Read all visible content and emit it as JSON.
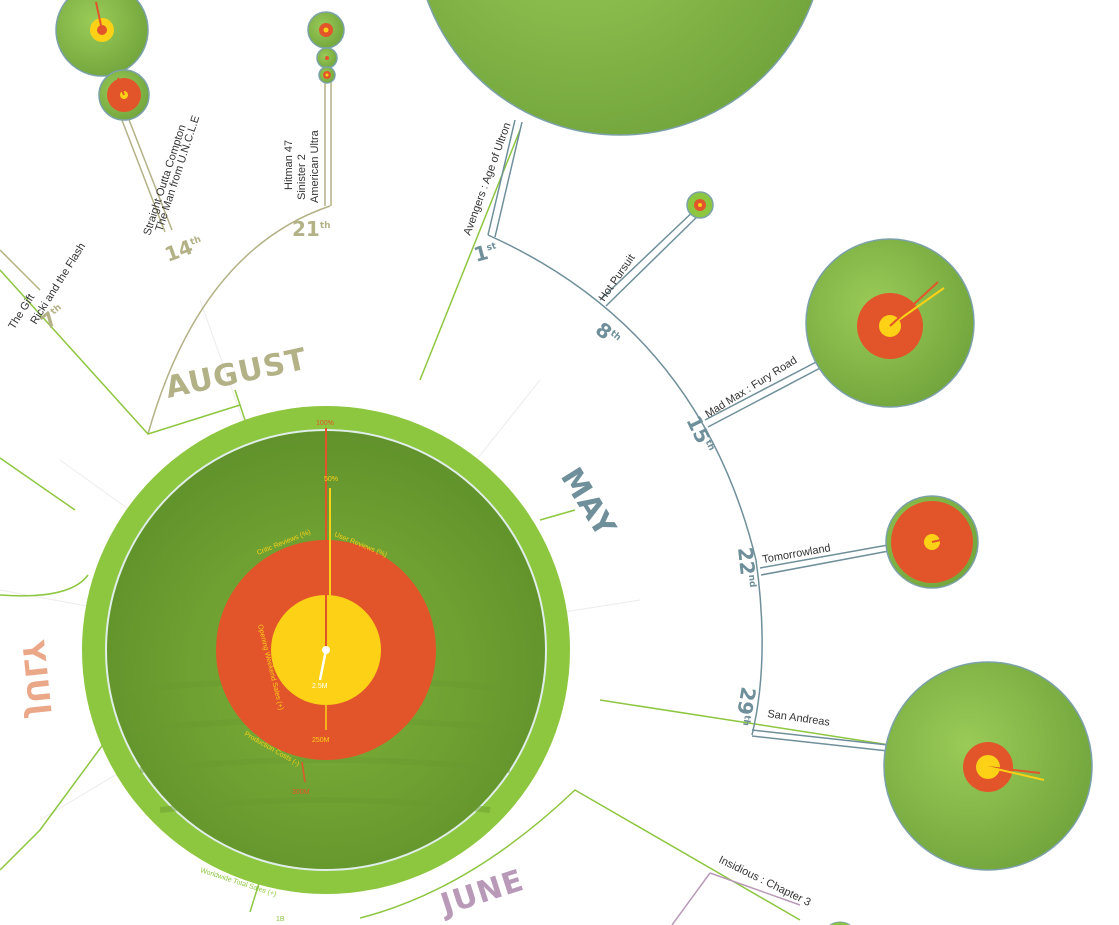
{
  "months": {
    "august": {
      "label": "AUGUST",
      "color": "#b3b186"
    },
    "may": {
      "label": "MAY",
      "color": "#6f8f9a"
    },
    "july": {
      "label": "JULY",
      "color": "#eaa889"
    },
    "june": {
      "label": "JUNE",
      "color": "#b89ab8"
    }
  },
  "august_days": [
    {
      "num": "7",
      "sup": "th"
    },
    {
      "num": "14",
      "sup": "th"
    },
    {
      "num": "21",
      "sup": "th"
    }
  ],
  "may_days": [
    {
      "num": "1",
      "sup": "st"
    },
    {
      "num": "8",
      "sup": "th"
    },
    {
      "num": "15",
      "sup": "th"
    },
    {
      "num": "22",
      "sup": "nd"
    },
    {
      "num": "29",
      "sup": "th"
    }
  ],
  "films": {
    "ricki": "Ricki and the Flash",
    "the_gift": "The Gift",
    "straight_outta": "Straight Outta Compton",
    "uncle": "The Man from U.N.C.L.E",
    "hitman": "Hitman 47",
    "sinister": "Sinister 2",
    "american_ultra": "American Ultra",
    "avengers": "Avengers : Age of Ultron",
    "hot_pursuit": "Hot Pursuit",
    "mad_max": "Mad Max : Fury Road",
    "tomorrowland": "Tomorrowland",
    "san_andreas": "San Andreas",
    "insidious": "Insidious : Chapter 3"
  },
  "legend": {
    "p100": "100%",
    "p50": "50%",
    "critic": "Critic Reviews (%)",
    "user": "User Reviews (%)",
    "opening": "Opening Weekend Sales (+)",
    "production": "Production Costs (-)",
    "worldwide": "Worldwide Total Sales (+)",
    "v25": "2.5M",
    "v250": "250M",
    "v300": "300M",
    "v1b": "1B"
  },
  "colors": {
    "green": "#8dc63f",
    "red": "#e2552b",
    "yellow": "#fcd116",
    "olive": "#b3b186",
    "slate": "#6f8f9a"
  }
}
